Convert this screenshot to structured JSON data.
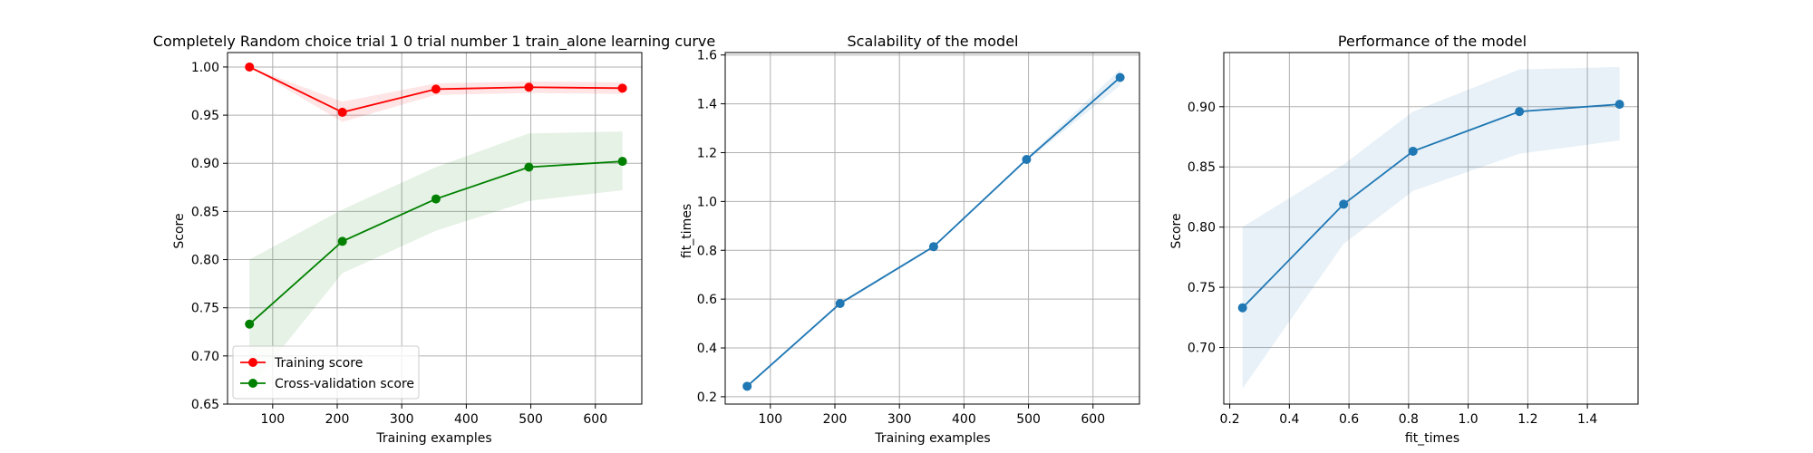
{
  "chart_data": [
    {
      "type": "line",
      "title": "Completely Random choice trial 1 0 trial number 1 train_alone learning curve",
      "xlabel": "Training examples",
      "ylabel": "Score",
      "xlim": [
        30,
        672
      ],
      "ylim": [
        0.65,
        1.015
      ],
      "xticks": [
        100,
        200,
        300,
        400,
        500,
        600
      ],
      "yticks": [
        0.65,
        0.7,
        0.75,
        0.8,
        0.85,
        0.9,
        0.95,
        1.0
      ],
      "ytick_decimals": 2,
      "grid": true,
      "legend": "lower-left",
      "series": [
        {
          "name": "Training score",
          "color": "#ff0000",
          "x": [
            64,
            208,
            353,
            497,
            642
          ],
          "y": [
            1.0,
            0.953,
            0.977,
            0.979,
            0.978
          ],
          "band_low": [
            1.0,
            0.943,
            0.971,
            0.973,
            0.972
          ],
          "band_high": [
            1.0,
            0.964,
            0.983,
            0.985,
            0.984
          ]
        },
        {
          "name": "Cross-validation score",
          "color": "#008000",
          "x": [
            64,
            208,
            353,
            497,
            642
          ],
          "y": [
            0.733,
            0.819,
            0.863,
            0.896,
            0.902
          ],
          "band_low": [
            0.666,
            0.786,
            0.83,
            0.861,
            0.872
          ],
          "band_high": [
            0.8,
            0.852,
            0.896,
            0.931,
            0.933
          ]
        }
      ]
    },
    {
      "type": "line",
      "title": "Scalability of the model",
      "xlabel": "Training examples",
      "ylabel": "fit_times",
      "xlim": [
        30,
        672
      ],
      "ylim": [
        0.17,
        1.61
      ],
      "xticks": [
        100,
        200,
        300,
        400,
        500,
        600
      ],
      "yticks": [
        0.2,
        0.4,
        0.6,
        0.8,
        1.0,
        1.2,
        1.4,
        1.6
      ],
      "ytick_decimals": 1,
      "grid": true,
      "series": [
        {
          "color": "#1f77b4",
          "x": [
            64,
            208,
            353,
            497,
            642
          ],
          "y": [
            0.243,
            0.582,
            0.815,
            1.172,
            1.508
          ],
          "band_low": [
            0.238,
            0.575,
            0.81,
            1.165,
            1.475
          ],
          "band_high": [
            0.248,
            0.589,
            0.82,
            1.179,
            1.541
          ]
        }
      ]
    },
    {
      "type": "line",
      "title": "Performance of the model",
      "xlabel": "fit_times",
      "ylabel": "Score",
      "xlim": [
        0.18,
        1.57
      ],
      "ylim": [
        0.653,
        0.945
      ],
      "xticks": [
        0.2,
        0.4,
        0.6,
        0.8,
        1.0,
        1.2,
        1.4
      ],
      "yticks": [
        0.7,
        0.75,
        0.8,
        0.85,
        0.9
      ],
      "ytick_decimals": 2,
      "xtick_decimals": 1,
      "grid": true,
      "series": [
        {
          "color": "#1f77b4",
          "x": [
            0.243,
            0.582,
            0.815,
            1.172,
            1.508
          ],
          "y": [
            0.733,
            0.819,
            0.863,
            0.896,
            0.902
          ],
          "band_low": [
            0.666,
            0.786,
            0.83,
            0.861,
            0.872
          ],
          "band_high": [
            0.8,
            0.852,
            0.896,
            0.931,
            0.933
          ]
        }
      ]
    }
  ]
}
